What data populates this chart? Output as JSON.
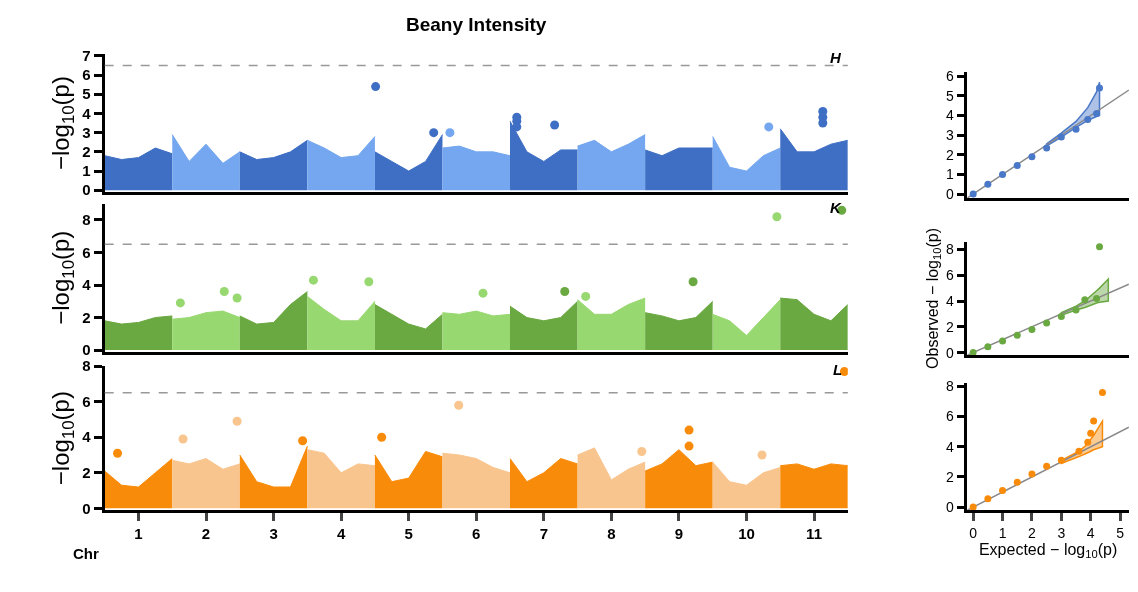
{
  "chart_data": [
    {
      "type": "scatter",
      "title": "Beany Intensity",
      "ylabel": "−log$_{10}$(p)",
      "annotations": [
        "H"
      ],
      "xlim": [
        0.5,
        11.5
      ],
      "ylim": [
        -0.1,
        7.1
      ],
      "yticks": [
        0,
        1,
        2,
        3,
        4,
        5,
        6,
        7
      ],
      "tick_labels": "y",
      "xticks": [
        1,
        2,
        3,
        4,
        5,
        6,
        7,
        8,
        9,
        10,
        11
      ],
      "ref_lines": [
        {
          "axis": "y",
          "value": 6.5,
          "color": "#999999",
          "line_style": "dashed"
        }
      ],
      "series": [
        {
          "type": "area",
          "color": "#3f6fc4",
          "x": [
            0.5,
            0.75,
            1,
            1.25,
            1.5
          ],
          "values": [
            1.8,
            1.6,
            1.7,
            2.2,
            1.9
          ]
        },
        {
          "type": "area",
          "color": "#74a7ef",
          "x": [
            1.5,
            1.75,
            2,
            2.25,
            2.5
          ],
          "values": [
            2.9,
            1.5,
            2.4,
            1.4,
            2.0
          ]
        },
        {
          "type": "area",
          "color": "#3f6fc4",
          "x": [
            2.5,
            2.75,
            3,
            3.25,
            3.5
          ],
          "values": [
            2.0,
            1.6,
            1.7,
            2.0,
            2.6
          ]
        },
        {
          "type": "area",
          "color": "#74a7ef",
          "x": [
            3.5,
            3.75,
            4,
            4.25,
            4.5
          ],
          "values": [
            2.6,
            2.2,
            1.7,
            1.8,
            2.8
          ]
        },
        {
          "type": "area",
          "color": "#3f6fc4",
          "x": [
            4.5,
            4.75,
            5,
            5.25,
            5.5
          ],
          "values": [
            2.0,
            1.5,
            1.0,
            1.5,
            2.9
          ]
        },
        {
          "type": "area",
          "color": "#74a7ef",
          "x": [
            5.5,
            5.75,
            6,
            6.25,
            6.5
          ],
          "values": [
            2.2,
            2.3,
            2.0,
            2.0,
            1.8
          ]
        },
        {
          "type": "area",
          "color": "#3f6fc4",
          "x": [
            6.5,
            6.75,
            7,
            7.25,
            7.5
          ],
          "values": [
            3.6,
            2.0,
            1.5,
            2.1,
            2.1
          ]
        },
        {
          "type": "area",
          "color": "#74a7ef",
          "x": [
            7.5,
            7.75,
            8,
            8.25,
            8.5
          ],
          "values": [
            2.3,
            2.6,
            2.0,
            2.4,
            2.9
          ]
        },
        {
          "type": "area",
          "color": "#3f6fc4",
          "x": [
            8.5,
            8.75,
            9,
            9.25,
            9.5
          ],
          "values": [
            2.1,
            1.8,
            2.2,
            2.2,
            2.2
          ]
        },
        {
          "type": "area",
          "color": "#74a7ef",
          "x": [
            9.5,
            9.75,
            10,
            10.25,
            10.5
          ],
          "values": [
            2.8,
            1.2,
            1.0,
            1.8,
            2.2
          ]
        },
        {
          "type": "area",
          "color": "#3f6fc4",
          "x": [
            10.5,
            10.75,
            11,
            11.25,
            11.5
          ],
          "values": [
            3.2,
            2.0,
            2.0,
            2.4,
            2.6
          ]
        },
        {
          "marker": "circle",
          "x": [
            4.51,
            6.6,
            6.6,
            6.6,
            7.16,
            11.13,
            11.13,
            11.13,
            10.33,
            5.61,
            5.37
          ],
          "values": [
            5.4,
            3.8,
            3.6,
            3.3,
            3.4,
            4.1,
            3.8,
            3.5,
            3.3,
            3.0,
            3.0
          ],
          "colors": [
            "#3f6fc4",
            "#3f6fc4",
            "#3f6fc4",
            "#3f6fc4",
            "#3f6fc4",
            "#3f6fc4",
            "#3f6fc4",
            "#3f6fc4",
            "#74a7ef",
            "#74a7ef",
            "#3f6fc4"
          ]
        }
      ]
    },
    {
      "type": "scatter",
      "ylabel": "−log$_{10}$(p)",
      "annotations": [
        "K"
      ],
      "xlim": [
        0.5,
        11.5
      ],
      "ylim": [
        -0.1,
        9
      ],
      "yticks": [
        0,
        2,
        4,
        6,
        8
      ],
      "tick_labels": "y",
      "xticks": [
        1,
        2,
        3,
        4,
        5,
        6,
        7,
        8,
        9,
        10,
        11
      ],
      "ref_lines": [
        {
          "axis": "y",
          "value": 6.5,
          "color": "#999999",
          "line_style": "dashed"
        }
      ],
      "series": [
        {
          "type": "area",
          "color": "#6aa842",
          "x": [
            0.5,
            0.75,
            1,
            1.25,
            1.5
          ],
          "values": [
            1.8,
            1.6,
            1.7,
            2.0,
            2.1
          ]
        },
        {
          "type": "area",
          "color": "#98d870",
          "x": [
            1.5,
            1.75,
            2,
            2.25,
            2.5
          ],
          "values": [
            1.9,
            2.0,
            2.3,
            2.4,
            2.0
          ]
        },
        {
          "type": "area",
          "color": "#6aa842",
          "x": [
            2.5,
            2.75,
            3,
            3.25,
            3.5
          ],
          "values": [
            2.1,
            1.6,
            1.7,
            2.8,
            3.6
          ]
        },
        {
          "type": "area",
          "color": "#98d870",
          "x": [
            3.5,
            3.75,
            4,
            4.25,
            4.5
          ],
          "values": [
            3.3,
            2.5,
            1.8,
            1.8,
            3.0
          ]
        },
        {
          "type": "area",
          "color": "#6aa842",
          "x": [
            4.5,
            4.75,
            5,
            5.25,
            5.5
          ],
          "values": [
            2.8,
            2.2,
            1.6,
            1.3,
            2.2
          ]
        },
        {
          "type": "area",
          "color": "#98d870",
          "x": [
            5.5,
            5.75,
            6,
            6.25,
            6.5
          ],
          "values": [
            2.3,
            2.2,
            2.4,
            2.1,
            2.2
          ]
        },
        {
          "type": "area",
          "color": "#6aa842",
          "x": [
            6.5,
            6.75,
            7,
            7.25,
            7.5
          ],
          "values": [
            2.7,
            2.0,
            1.8,
            2.0,
            3.0
          ]
        },
        {
          "type": "area",
          "color": "#98d870",
          "x": [
            7.5,
            7.75,
            8,
            8.25,
            8.5
          ],
          "values": [
            3.1,
            2.2,
            2.2,
            2.8,
            3.2
          ]
        },
        {
          "type": "area",
          "color": "#6aa842",
          "x": [
            8.5,
            8.75,
            9,
            9.25,
            9.5
          ],
          "values": [
            2.3,
            2.1,
            1.8,
            2.0,
            3.0
          ]
        },
        {
          "type": "area",
          "color": "#98d870",
          "x": [
            9.5,
            9.75,
            10,
            10.25,
            10.5
          ],
          "values": [
            2.2,
            1.8,
            0.9,
            2.0,
            3.1
          ]
        },
        {
          "type": "area",
          "color": "#6aa842",
          "x": [
            10.5,
            10.75,
            11,
            11.25,
            11.5
          ],
          "values": [
            3.2,
            3.1,
            2.2,
            1.8,
            2.8
          ]
        },
        {
          "marker": "circle",
          "x": [
            10.45,
            11.41,
            3.59,
            4.41,
            9.21,
            7.31,
            6.1,
            2.27,
            2.46,
            1.62,
            7.62
          ],
          "values": [
            8.2,
            8.6,
            4.3,
            4.2,
            4.2,
            3.6,
            3.5,
            3.6,
            3.2,
            2.9,
            3.3
          ],
          "colors": [
            "#98d870",
            "#6aa842",
            "#98d870",
            "#98d870",
            "#6aa842",
            "#6aa842",
            "#98d870",
            "#98d870",
            "#98d870",
            "#98d870",
            "#98d870"
          ]
        }
      ]
    },
    {
      "type": "scatter",
      "ylabel": "−log$_{10}$(p)",
      "xlabel": "Chr",
      "annotations": [
        "L"
      ],
      "xlim": [
        0.5,
        11.5
      ],
      "ylim": [
        -0.1,
        8
      ],
      "yticks": [
        0,
        2,
        4,
        6,
        8
      ],
      "xticks": [
        1,
        2,
        3,
        4,
        5,
        6,
        7,
        8,
        9,
        10,
        11
      ],
      "ref_lines": [
        {
          "axis": "y",
          "value": 6.5,
          "color": "#999999",
          "line_style": "dashed"
        }
      ],
      "series": [
        {
          "type": "area",
          "color": "#f98b0a",
          "x": [
            0.5,
            0.75,
            1,
            1.25,
            1.5
          ],
          "values": [
            2.1,
            1.3,
            1.2,
            2.0,
            2.8
          ]
        },
        {
          "type": "area",
          "color": "#f9c58e",
          "x": [
            1.5,
            1.75,
            2,
            2.25,
            2.5
          ],
          "values": [
            2.7,
            2.5,
            2.8,
            2.2,
            2.5
          ]
        },
        {
          "type": "area",
          "color": "#f98b0a",
          "x": [
            2.5,
            2.75,
            3,
            3.25,
            3.5
          ],
          "values": [
            3.0,
            1.5,
            1.2,
            1.2,
            3.5
          ]
        },
        {
          "type": "area",
          "color": "#f9c58e",
          "x": [
            3.5,
            3.75,
            4,
            4.25,
            4.5
          ],
          "values": [
            3.3,
            3.1,
            2.0,
            2.5,
            2.4
          ]
        },
        {
          "type": "area",
          "color": "#f98b0a",
          "x": [
            4.5,
            4.75,
            5,
            5.25,
            5.5
          ],
          "values": [
            3.0,
            1.5,
            1.7,
            3.2,
            2.9
          ]
        },
        {
          "type": "area",
          "color": "#f9c58e",
          "x": [
            5.5,
            5.75,
            6,
            6.25,
            6.5
          ],
          "values": [
            3.1,
            3.0,
            2.8,
            2.3,
            2.0
          ]
        },
        {
          "type": "area",
          "color": "#f98b0a",
          "x": [
            6.5,
            6.75,
            7,
            7.25,
            7.5
          ],
          "values": [
            2.8,
            1.5,
            2.0,
            2.8,
            2.5
          ]
        },
        {
          "type": "area",
          "color": "#f9c58e",
          "x": [
            7.5,
            7.75,
            8,
            8.25,
            8.5
          ],
          "values": [
            3.0,
            3.4,
            1.6,
            2.2,
            2.6
          ]
        },
        {
          "type": "area",
          "color": "#f98b0a",
          "x": [
            8.5,
            8.75,
            9,
            9.25,
            9.5
          ],
          "values": [
            2.1,
            2.5,
            3.3,
            2.4,
            2.6
          ]
        },
        {
          "type": "area",
          "color": "#f9c58e",
          "x": [
            9.5,
            9.75,
            10,
            10.25,
            10.5
          ],
          "values": [
            2.6,
            1.5,
            1.3,
            2.0,
            2.3
          ]
        },
        {
          "type": "area",
          "color": "#f98b0a",
          "x": [
            10.5,
            10.75,
            11,
            11.25,
            11.5
          ],
          "values": [
            2.4,
            2.5,
            2.2,
            2.5,
            2.4
          ]
        },
        {
          "marker": "circle",
          "x": [
            11.45,
            5.74,
            2.46,
            1.66,
            4.6,
            9.15,
            9.15,
            0.69,
            8.45,
            10.23,
            3.43
          ],
          "values": [
            7.7,
            5.8,
            4.9,
            3.9,
            4.0,
            4.4,
            3.5,
            3.1,
            3.2,
            3.0,
            3.8
          ],
          "colors": [
            "#f98b0a",
            "#f9c58e",
            "#f9c58e",
            "#f9c58e",
            "#f98b0a",
            "#f98b0a",
            "#f98b0a",
            "#f98b0a",
            "#f9c58e",
            "#f9c58e",
            "#f98b0a"
          ]
        }
      ]
    },
    {
      "type": "scatter",
      "xlim": [
        -0.2,
        5.3
      ],
      "xticks": [
        0,
        1,
        2,
        3,
        4,
        5
      ],
      "ylim": [
        -0.2,
        6.2
      ],
      "yticks": [
        0,
        1,
        2,
        3,
        4,
        5,
        6
      ],
      "tick_labels": "y",
      "series": [
        {
          "type": "line",
          "color": "#888888",
          "x": [
            -0.2,
            5.3
          ],
          "values": [
            -0.2,
            5.3
          ]
        },
        {
          "color": "#4a78c8",
          "marker": "circle",
          "x": [
            0,
            0.5,
            1,
            1.5,
            2,
            2.5,
            3,
            3.5,
            3.9,
            4.2,
            4.3
          ],
          "values": [
            0,
            0.5,
            1,
            1.45,
            1.9,
            2.35,
            2.9,
            3.3,
            3.8,
            4.1,
            5.4
          ],
          "lower": [
            null,
            null,
            null,
            null,
            null,
            2.45,
            2.9,
            3.4,
            3.75,
            3.95,
            4.0
          ],
          "upper": [
            null,
            null,
            null,
            null,
            null,
            2.55,
            3.1,
            3.7,
            4.4,
            5.2,
            5.7
          ]
        }
      ]
    },
    {
      "type": "scatter",
      "ylabel": "Observed − log$_{10}$(p)",
      "xlim": [
        -0.2,
        5.3
      ],
      "xticks": [
        0,
        1,
        2,
        3,
        4,
        5
      ],
      "ylim": [
        -0.2,
        8.6
      ],
      "yticks": [
        0,
        2,
        4,
        6,
        8
      ],
      "tick_labels": "y",
      "series": [
        {
          "type": "line",
          "color": "#888888",
          "x": [
            -0.2,
            5.3
          ],
          "values": [
            -0.2,
            5.3
          ]
        },
        {
          "color": "#6aa842",
          "marker": "circle",
          "x": [
            0,
            0.5,
            1,
            1.5,
            2,
            2.5,
            3,
            3.5,
            3.8,
            4.2,
            4.3,
            4.6
          ],
          "values": [
            0,
            0.45,
            0.9,
            1.35,
            1.8,
            2.3,
            2.8,
            3.3,
            4.1,
            4.2,
            8.2,
            null
          ],
          "lower": [
            null,
            null,
            null,
            null,
            null,
            null,
            2.9,
            3.3,
            3.5,
            3.85,
            3.9,
            4.0
          ],
          "upper": [
            null,
            null,
            null,
            null,
            null,
            null,
            3.1,
            3.6,
            4.0,
            4.8,
            5.0,
            5.7
          ]
        }
      ]
    },
    {
      "type": "scatter",
      "xlabel": "Expected − log$_{10}$(p)",
      "xlim": [
        -0.2,
        5.3
      ],
      "xticks": [
        0,
        1,
        2,
        3,
        4,
        5
      ],
      "ylim": [
        -0.2,
        8.2
      ],
      "yticks": [
        0,
        2,
        4,
        6,
        8
      ],
      "series": [
        {
          "type": "line",
          "color": "#888888",
          "x": [
            -0.2,
            5.3
          ],
          "values": [
            -0.2,
            5.3
          ]
        },
        {
          "color": "#f98b0a",
          "marker": "circle",
          "x": [
            0,
            0.5,
            1,
            1.5,
            2,
            2.5,
            3,
            3.6,
            3.9,
            4,
            4.1,
            4.4
          ],
          "values": [
            0,
            0.55,
            1.1,
            1.65,
            2.2,
            2.7,
            3.1,
            3.7,
            4.3,
            4.9,
            5.7,
            7.6
          ],
          "lower": [
            null,
            null,
            null,
            null,
            null,
            null,
            2.9,
            3.35,
            3.6,
            3.7,
            3.8,
            4.0
          ],
          "upper": [
            null,
            null,
            null,
            null,
            null,
            null,
            3.1,
            3.7,
            4.2,
            4.5,
            4.75,
            5.7
          ]
        }
      ]
    }
  ]
}
